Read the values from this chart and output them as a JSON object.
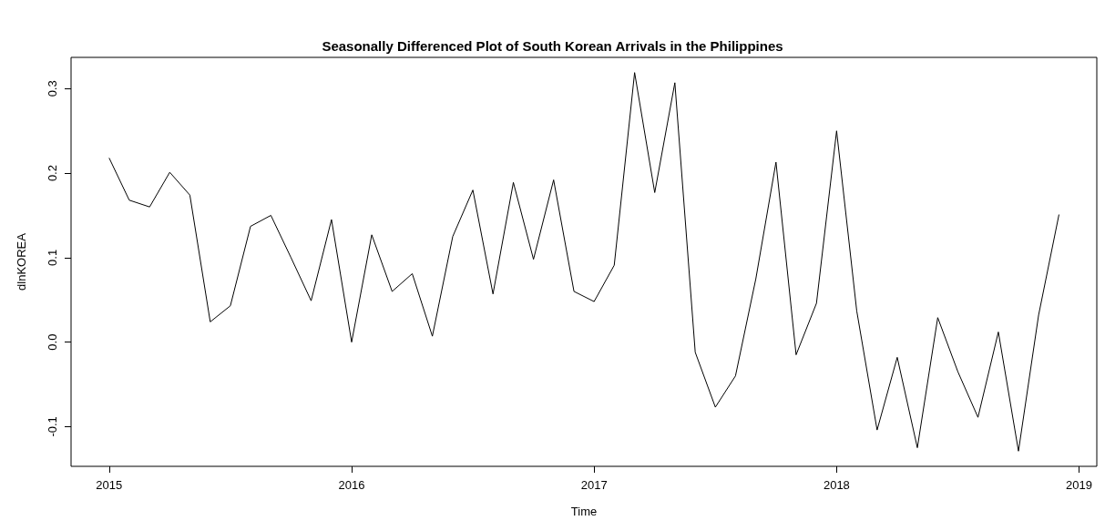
{
  "chart_data": {
    "type": "line",
    "title": "Seasonally Differenced Plot of South Korean Arrivals in the Philippines",
    "xlabel": "Time",
    "ylabel": "dlnKOREA",
    "x": [
      2015,
      2015.083,
      2015.167,
      2015.25,
      2015.333,
      2015.417,
      2015.5,
      2015.583,
      2015.667,
      2015.75,
      2015.833,
      2015.917,
      2016,
      2016.083,
      2016.167,
      2016.25,
      2016.333,
      2016.417,
      2016.5,
      2016.583,
      2016.667,
      2016.75,
      2016.833,
      2016.917,
      2017,
      2017.083,
      2017.167,
      2017.25,
      2017.333,
      2017.417,
      2017.5,
      2017.583,
      2017.667,
      2017.75,
      2017.833,
      2017.917,
      2018,
      2018.083,
      2018.167,
      2018.25,
      2018.333,
      2018.417,
      2018.5,
      2018.583,
      2018.667,
      2018.75,
      2018.833,
      2018.917
    ],
    "values": [
      0.218,
      0.168,
      0.16,
      0.201,
      0.174,
      0.024,
      0.043,
      0.137,
      0.15,
      0.1,
      0.049,
      0.145,
      0.0,
      0.127,
      0.06,
      0.081,
      0.007,
      0.125,
      0.18,
      0.057,
      0.189,
      0.098,
      0.192,
      0.06,
      0.048,
      0.091,
      0.319,
      0.177,
      0.307,
      -0.012,
      -0.077,
      -0.04,
      0.075,
      0.213,
      -0.015,
      0.046,
      0.25,
      0.037,
      -0.104,
      -0.018,
      -0.125,
      0.029,
      -0.035,
      -0.089,
      0.012,
      -0.129,
      0.032,
      0.151
    ],
    "color": "#000000",
    "xlim": [
      2014.843,
      2019.073
    ],
    "ylim": [
      -0.147,
      0.337
    ],
    "xticks": [
      2015,
      2016,
      2017,
      2018,
      2019
    ],
    "yticks": [
      {
        "value": -0.1,
        "label": "-0.1"
      },
      {
        "value": 0,
        "label": "0.0"
      },
      {
        "value": 0.1,
        "label": "0.1"
      },
      {
        "value": 0.2,
        "label": "0.2"
      },
      {
        "value": 0.3,
        "label": "0.3"
      }
    ],
    "grid": false,
    "marker": "none",
    "line_style": "solid"
  }
}
